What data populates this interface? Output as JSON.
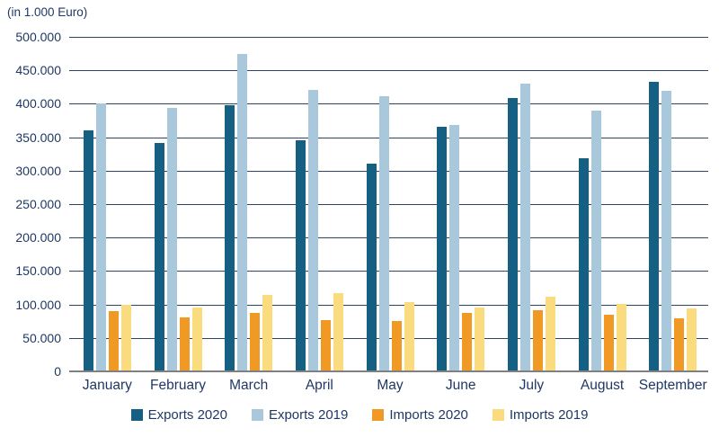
{
  "chart_data": {
    "type": "bar",
    "title": "",
    "unit_label": "(in 1.000 Euro)",
    "categories": [
      "January",
      "February",
      "March",
      "April",
      "May",
      "June",
      "July",
      "August",
      "September"
    ],
    "series": [
      {
        "name": "Exports 2020",
        "color": "#156082",
        "values": [
          360000,
          341000,
          398000,
          345000,
          311000,
          365000,
          408000,
          319000,
          433000
        ]
      },
      {
        "name": "Exports 2019",
        "color": "#A9C8DC",
        "values": [
          400000,
          394000,
          475000,
          421000,
          411000,
          368000,
          430000,
          390000,
          420000
        ]
      },
      {
        "name": "Imports 2020",
        "color": "#F09A25",
        "values": [
          90000,
          80000,
          87000,
          77000,
          75000,
          87000,
          91000,
          85000,
          79000
        ]
      },
      {
        "name": "Imports 2019",
        "color": "#FADB7D",
        "values": [
          100000,
          95000,
          114000,
          117000,
          103000,
          96000,
          111000,
          101000,
          94000
        ]
      }
    ],
    "ylim": [
      0,
      500000
    ],
    "ytick_step": 50000,
    "ytick_labels": [
      "0",
      "50.000",
      "100.000",
      "150.000",
      "200.000",
      "250.000",
      "300.000",
      "350.000",
      "400.000",
      "450.000",
      "500.000"
    ],
    "grid": true,
    "legend_position": "bottom",
    "colors": {
      "text": "#1F3864",
      "gridline": "#2F4668",
      "axis_line": "#808080",
      "background": "#FFFFFF"
    }
  }
}
